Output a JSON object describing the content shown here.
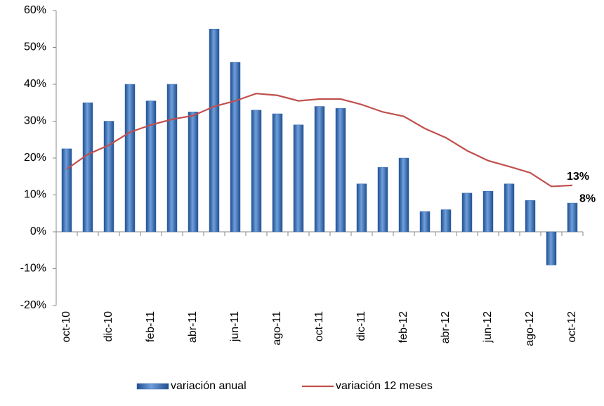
{
  "chart_data": {
    "type": "bar",
    "categories": [
      "oct-10",
      null,
      "dic-10",
      null,
      "feb-11",
      null,
      "abr-11",
      null,
      "jun-11",
      null,
      "ago-11",
      null,
      "oct-11",
      null,
      "dic-11",
      null,
      "feb-12",
      null,
      "abr-12",
      null,
      "jun-12",
      null,
      "ago-12",
      null,
      "oct-12"
    ],
    "series": [
      {
        "name": "variación anual",
        "type": "bar",
        "color": "#3a6db5",
        "values": [
          22.5,
          35,
          30,
          40,
          35.5,
          40,
          32.5,
          55,
          46,
          33,
          32,
          29,
          34,
          33.5,
          13,
          17.5,
          20,
          5.5,
          6,
          10.5,
          11,
          13,
          8.5,
          -9,
          7.8
        ],
        "value_labels": [
          null,
          null,
          null,
          null,
          null,
          null,
          null,
          null,
          null,
          null,
          null,
          null,
          null,
          null,
          null,
          null,
          null,
          null,
          null,
          null,
          null,
          null,
          null,
          null,
          "8%"
        ]
      },
      {
        "name": "variación 12 meses",
        "type": "line",
        "color": "#c0504d",
        "values": [
          17,
          21,
          23.5,
          27,
          29,
          30.5,
          31.5,
          34,
          35.5,
          37.5,
          37,
          35.5,
          36,
          36,
          34.5,
          32.5,
          31.3,
          28,
          25.5,
          22,
          19.3,
          17.7,
          16,
          12.3,
          12.6
        ],
        "value_labels": [
          null,
          null,
          null,
          null,
          null,
          null,
          null,
          null,
          null,
          null,
          null,
          null,
          null,
          null,
          null,
          null,
          null,
          null,
          null,
          null,
          null,
          null,
          null,
          null,
          "13%"
        ]
      }
    ],
    "ylim": [
      -20,
      60
    ],
    "yticks": [
      {
        "value": -20,
        "label": "-20%"
      },
      {
        "value": -10,
        "label": "-10%"
      },
      {
        "value": 0,
        "label": "0%"
      },
      {
        "value": 10,
        "label": "10%"
      },
      {
        "value": 20,
        "label": "20%"
      },
      {
        "value": 30,
        "label": "30%"
      },
      {
        "value": 40,
        "label": "40%"
      },
      {
        "value": 50,
        "label": "50%"
      },
      {
        "value": 60,
        "label": "60%"
      }
    ],
    "grid": false,
    "legend": "bottom"
  }
}
